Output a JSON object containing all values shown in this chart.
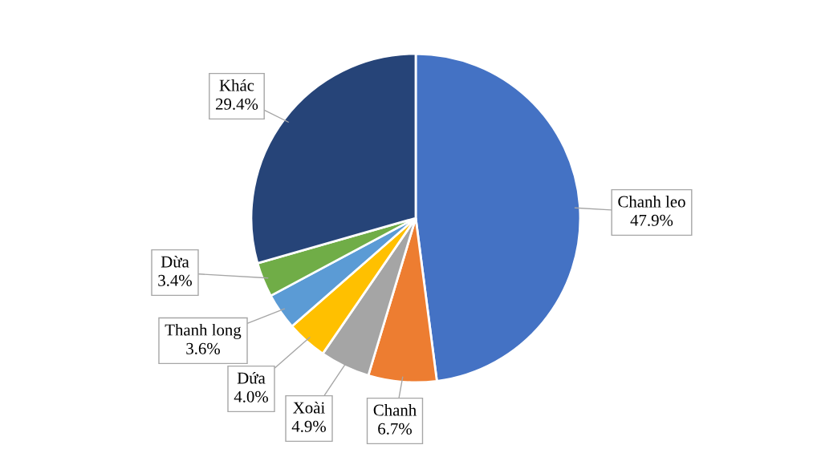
{
  "chart_data": {
    "type": "pie",
    "categories": [
      "Chanh leo",
      "Chanh",
      "Xoài",
      "Dứa",
      "Thanh long",
      "Dừa",
      "Khác"
    ],
    "values": [
      47.9,
      6.7,
      4.9,
      4.0,
      3.6,
      3.4,
      29.4
    ],
    "value_labels": [
      "47.9%",
      "6.7%",
      "4.9%",
      "4.0%",
      "3.6%",
      "3.4%",
      "29.4%"
    ],
    "colors": [
      "#4472c4",
      "#ed7d31",
      "#a5a5a5",
      "#ffc000",
      "#5b9bd5",
      "#70ad47",
      "#264478"
    ],
    "legend": false
  }
}
